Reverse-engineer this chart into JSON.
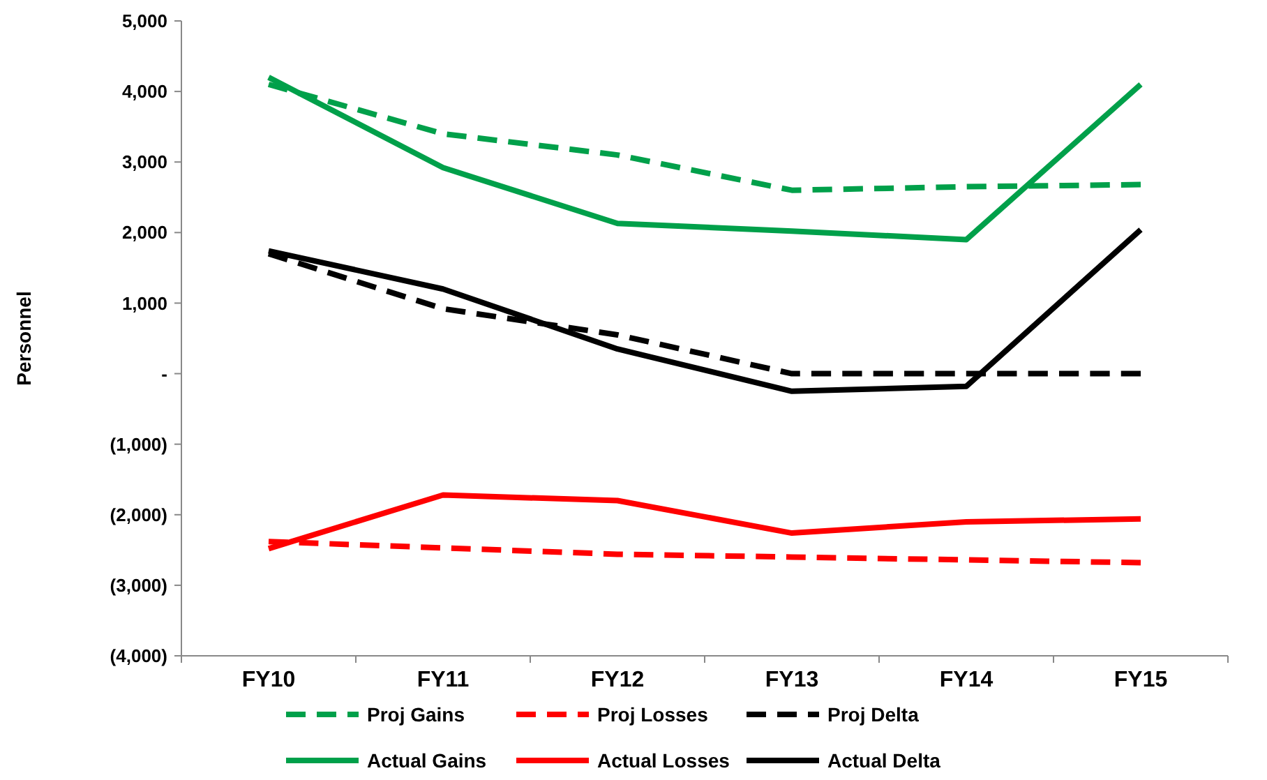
{
  "chart_data": {
    "type": "line",
    "ylabel": "Personnel",
    "categories": [
      "FY10",
      "FY11",
      "FY12",
      "FY13",
      "FY14",
      "FY15"
    ],
    "ylim": [
      -4000,
      5000
    ],
    "yticks": [
      {
        "value": -4000,
        "label": "(4,000)"
      },
      {
        "value": -3000,
        "label": "(3,000)"
      },
      {
        "value": -2000,
        "label": "(2,000)"
      },
      {
        "value": -1000,
        "label": "(1,000)"
      },
      {
        "value": 0,
        "label": "-"
      },
      {
        "value": 1000,
        "label": "1,000"
      },
      {
        "value": 2000,
        "label": "2,000"
      },
      {
        "value": 3000,
        "label": "3,000"
      },
      {
        "value": 4000,
        "label": "4,000"
      },
      {
        "value": 5000,
        "label": "5,000"
      }
    ],
    "legend": "bottom",
    "series": [
      {
        "name": "Proj Gains",
        "color": "#00a04a",
        "line_style": "dashed",
        "values": [
          4100,
          3400,
          3100,
          2600,
          2650,
          2680
        ]
      },
      {
        "name": "Proj Losses",
        "color": "#ff0000",
        "line_style": "dashed",
        "values": [
          -2380,
          -2470,
          -2560,
          -2600,
          -2640,
          -2680
        ]
      },
      {
        "name": "Proj Delta",
        "color": "#000000",
        "line_style": "dashed",
        "values": [
          1700,
          920,
          550,
          0,
          0,
          0
        ]
      },
      {
        "name": "Actual Gains",
        "color": "#00a04a",
        "line_style": "solid",
        "values": [
          4200,
          2920,
          2130,
          2020,
          1900,
          4100
        ]
      },
      {
        "name": "Actual Losses",
        "color": "#ff0000",
        "line_style": "solid",
        "values": [
          -2480,
          -1720,
          -1800,
          -2260,
          -2100,
          -2060
        ]
      },
      {
        "name": "Actual Delta",
        "color": "#000000",
        "line_style": "solid",
        "values": [
          1740,
          1200,
          350,
          -250,
          -180,
          2040
        ]
      }
    ]
  }
}
